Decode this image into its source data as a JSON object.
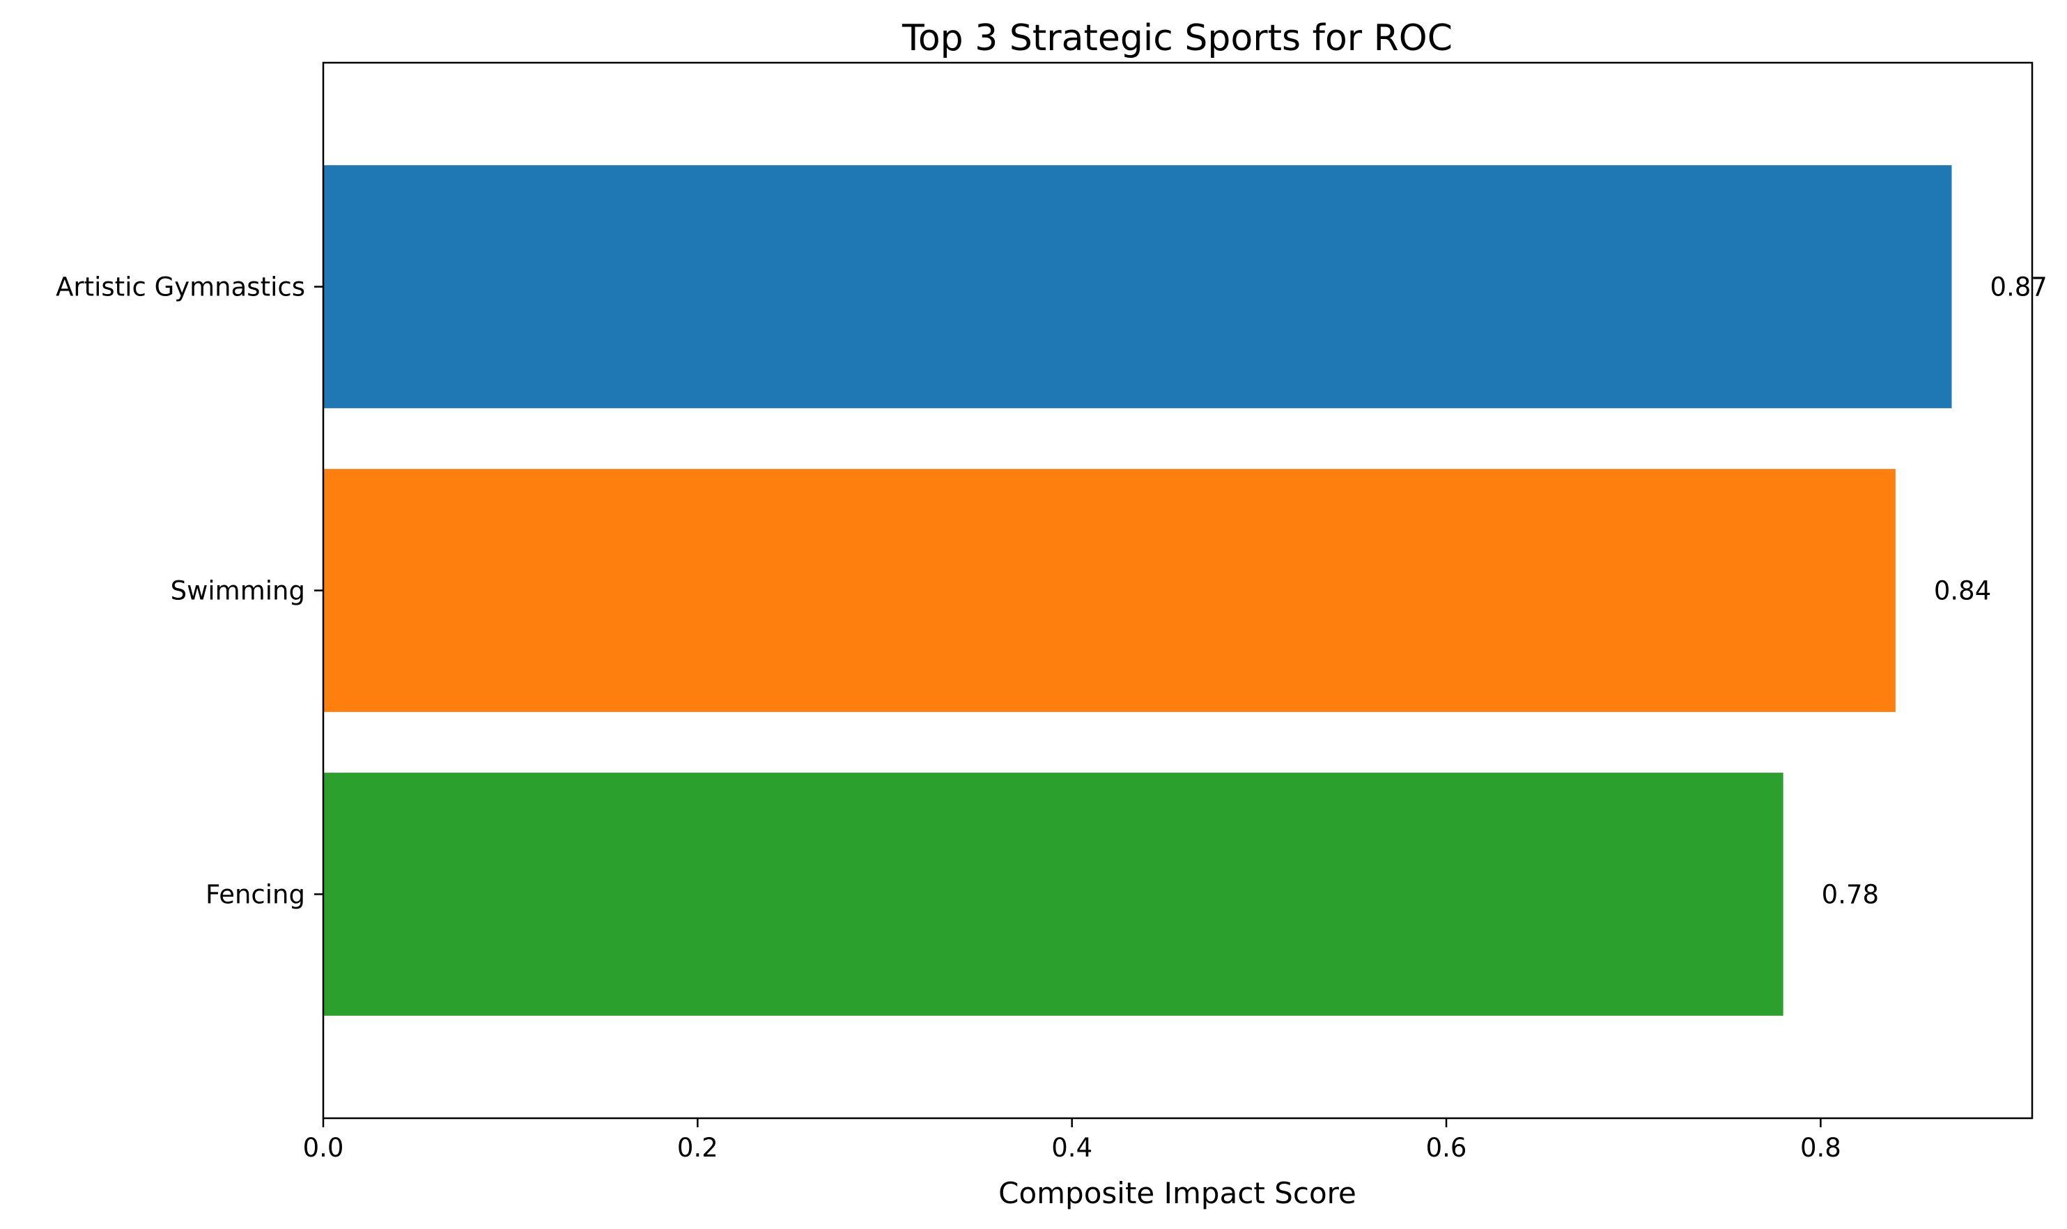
{
  "chart_data": {
    "type": "bar",
    "orientation": "horizontal",
    "title": "Top 3 Strategic Sports for ROC",
    "xlabel": "Composite Impact Score",
    "ylabel": "",
    "categories": [
      "Artistic Gymnastics",
      "Swimming",
      "Fencing"
    ],
    "values": [
      0.87,
      0.84,
      0.78
    ],
    "data_labels": [
      "0.87",
      "0.84",
      "0.78"
    ],
    "colors": [
      "#1f77b4",
      "#ff7f0e",
      "#2ca02c"
    ],
    "xlim": [
      0,
      0.913
    ],
    "xticks": [
      0.0,
      0.2,
      0.4,
      0.6,
      0.8
    ],
    "xtick_labels": [
      "0.0",
      "0.2",
      "0.4",
      "0.6",
      "0.8"
    ],
    "grid": false,
    "legend": "none"
  }
}
